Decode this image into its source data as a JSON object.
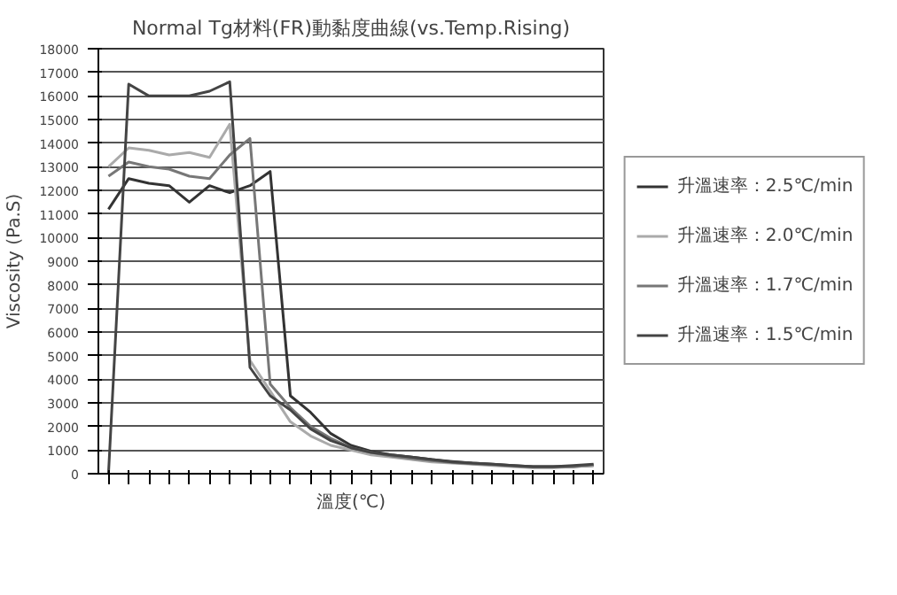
{
  "chart_data": {
    "type": "line",
    "title": "Normal Tg材料(FR)動黏度曲線(vs.Temp.Rising)",
    "xlabel": "溫度(℃)",
    "ylabel": "Viscosity (Pa.S)",
    "categories": [
      null,
      null,
      null,
      null,
      null,
      null,
      null,
      null,
      null,
      null,
      null,
      null,
      null,
      null,
      null,
      null,
      null,
      null,
      null,
      null,
      null,
      null,
      null,
      null,
      null
    ],
    "ylim": [
      0,
      18000
    ],
    "yticks": [
      0,
      1000,
      2000,
      3000,
      4000,
      5000,
      6000,
      7000,
      8000,
      9000,
      10000,
      11000,
      12000,
      13000,
      14000,
      15000,
      16000,
      17000,
      18000
    ],
    "grid": "y",
    "legend": "right",
    "marker": "none",
    "line_style": "solid",
    "series": [
      {
        "name": "升溫速率：2.5℃/min",
        "color": "#333333",
        "values": [
          11200,
          12500,
          12300,
          12200,
          11500,
          12200,
          11900,
          12200,
          12800,
          3300,
          2600,
          1700,
          1200,
          950,
          800,
          700,
          600,
          520,
          450,
          400,
          350,
          300,
          300,
          300,
          350
        ]
      },
      {
        "name": "升溫速率：2.0℃/min",
        "color": "#aaaaaa",
        "values": [
          13000,
          13800,
          13700,
          13500,
          13600,
          13400,
          14800,
          4800,
          3500,
          2200,
          1600,
          1200,
          1000,
          800,
          700,
          600,
          500,
          450,
          400,
          350,
          300,
          250,
          250,
          300,
          350
        ]
      },
      {
        "name": "升溫速率：1.7℃/min",
        "color": "#777777",
        "values": [
          12600,
          13200,
          13000,
          12900,
          12600,
          12500,
          13500,
          14200,
          3800,
          2800,
          2000,
          1500,
          1100,
          900,
          750,
          650,
          550,
          480,
          420,
          380,
          330,
          280,
          280,
          300,
          380
        ]
      },
      {
        "name": "升溫速率：1.5℃/min",
        "color": "#444444",
        "values": [
          0,
          16500,
          16000,
          16000,
          16000,
          16200,
          16600,
          4500,
          3300,
          2700,
          1900,
          1400,
          1100,
          900,
          800,
          700,
          600,
          500,
          450,
          400,
          350,
          300,
          300,
          350,
          400
        ]
      }
    ]
  }
}
